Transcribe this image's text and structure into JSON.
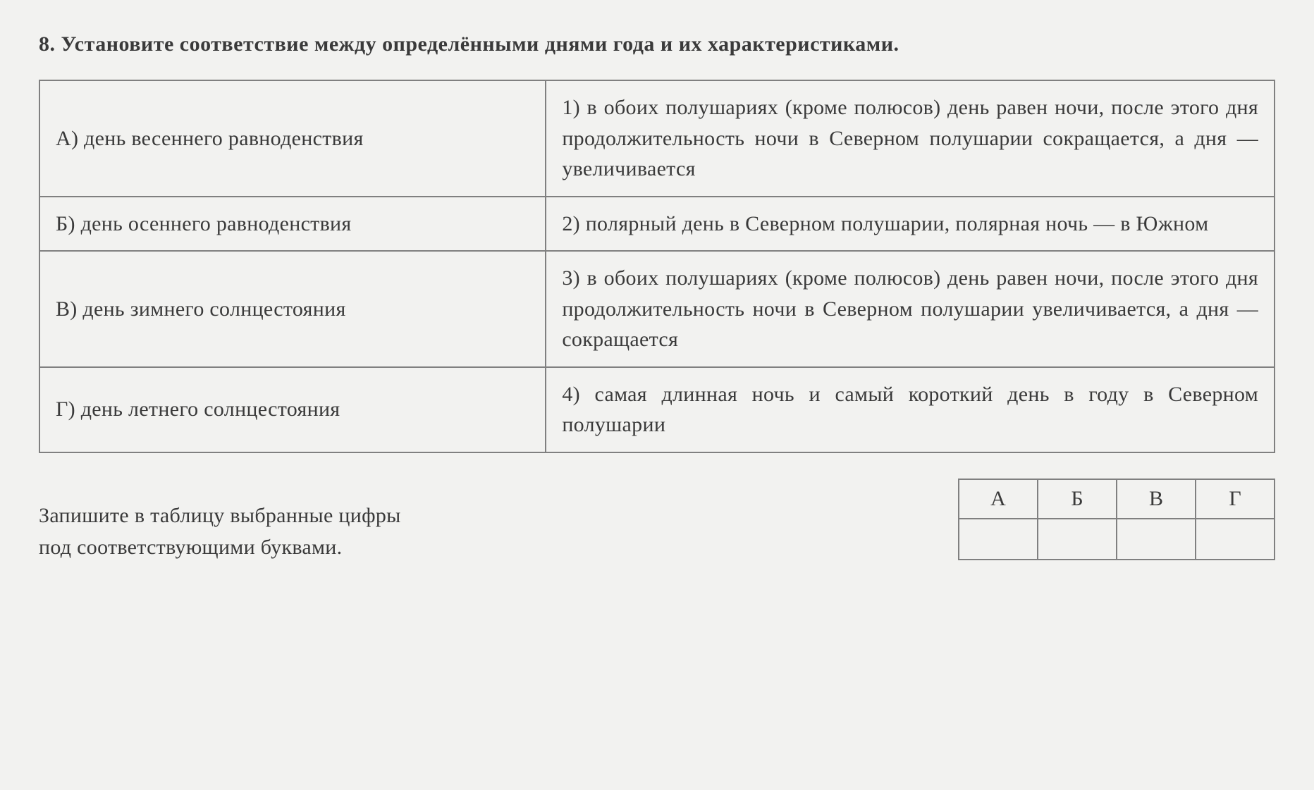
{
  "question": {
    "number": "8.",
    "text": "Установите соответствие между определёнными днями года и их характеристиками."
  },
  "matching_table": {
    "rows": [
      {
        "left": "А) день весеннего равноденствия",
        "right": "1) в обоих полушариях (кроме полюсов) день равен ночи, после этого дня продолжительность ночи в Северном полушарии сокращается, а дня — увеличивается"
      },
      {
        "left": "Б) день осеннего равноденствия",
        "right": "2) полярный день в Северном полушарии, полярная ночь — в Южном"
      },
      {
        "left": "В) день зимнего солнцестояния",
        "right": "3) в обоих полушариях (кроме полюсов) день равен ночи, после этого дня продолжительность ночи в Северном полушарии увеличивается, а дня — сокращается"
      },
      {
        "left": "Г) день летнего солнцестояния",
        "right": "4) самая длинная ночь и самый короткий день в году в Северном полушарии"
      }
    ]
  },
  "instruction": {
    "line1": "Запишите в таблицу выбранные цифры",
    "line2": "под соответствующими буквами."
  },
  "answer_table": {
    "headers": [
      "А",
      "Б",
      "В",
      "Г"
    ],
    "values": [
      "",
      "",
      "",
      ""
    ]
  },
  "colors": {
    "background": "#f2f2f0",
    "text": "#3a3a3a",
    "border": "#808080"
  },
  "typography": {
    "base_fontsize": 30,
    "font_family": "Georgia, Times New Roman, serif",
    "line_height": 1.45
  }
}
